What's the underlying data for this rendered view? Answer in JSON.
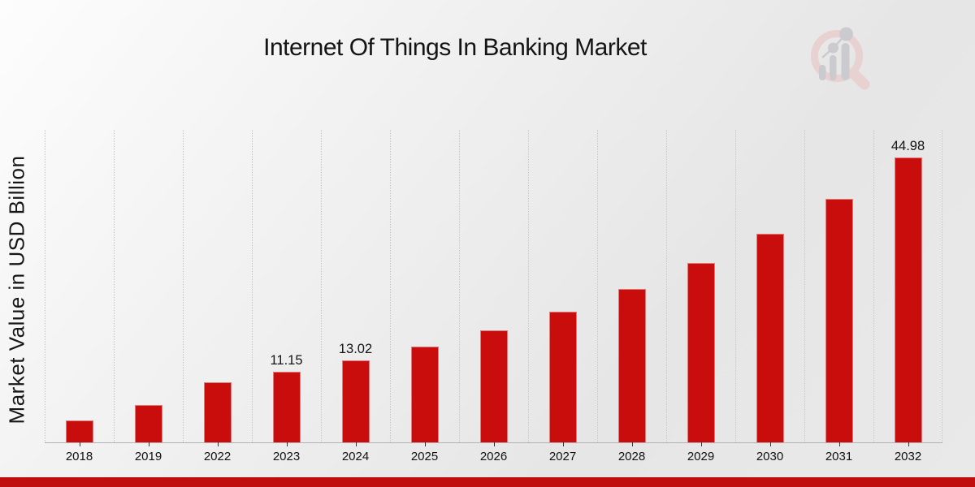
{
  "header": {
    "title": "Internet Of Things In Banking Market"
  },
  "chart_data": {
    "type": "bar",
    "title": "Internet Of Things In Banking Market",
    "xlabel": "",
    "ylabel": "Market Value in USD Billion",
    "categories": [
      "2018",
      "2019",
      "2022",
      "2023",
      "2024",
      "2025",
      "2026",
      "2027",
      "2028",
      "2029",
      "2030",
      "2031",
      "2032"
    ],
    "values": [
      3.5,
      5.9,
      9.5,
      11.15,
      13.02,
      15.2,
      17.75,
      20.7,
      24.2,
      28.3,
      33.0,
      38.5,
      44.98
    ],
    "bar_labels": [
      "",
      "",
      "",
      "11.15",
      "13.02",
      "",
      "",
      "",
      "",
      "",
      "",
      "",
      "44.98"
    ],
    "ylim": [
      0,
      49.4
    ],
    "grid": "vertical dotted gridlines, no y-axis tick labels",
    "legend": "none"
  },
  "colors": {
    "bar": "#c90d0d",
    "bottom_strip": "#c00d0d",
    "bg_top_left": "#fdfdfd",
    "bg_bottom_right": "#e6e6e6",
    "gridline": "#c7c7c7",
    "axis_line": "#b2b2b2",
    "logo_ring": "#e9cfcf",
    "logo_bars": "#c9c9cd"
  },
  "branding": {
    "logo": "magnifying-glass-with-bar-chart-watermark"
  }
}
